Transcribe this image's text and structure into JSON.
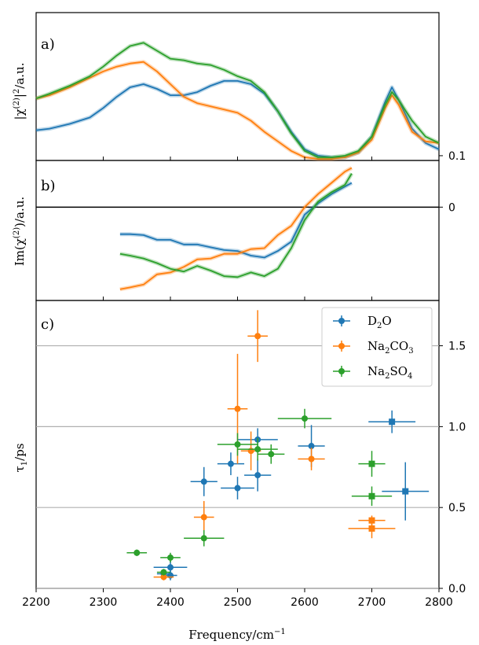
{
  "colors": {
    "D2O": "#1f77b4",
    "Na2CO3": "#ff7f0e",
    "Na2SO4": "#2ca02c",
    "grid": "#b0b0b0"
  },
  "chart_data": [
    {
      "panel": "a)",
      "type": "line",
      "ylabel": "|χ(2)|²/a.u.",
      "xlim": [
        2200,
        2800
      ],
      "ylim": [
        0.07,
        1.0
      ],
      "yticks": [
        "0.1"
      ],
      "series": [
        {
          "name": "D2O",
          "x": [
            2200,
            2220,
            2250,
            2280,
            2300,
            2320,
            2340,
            2360,
            2380,
            2400,
            2420,
            2440,
            2460,
            2480,
            2500,
            2520,
            2540,
            2560,
            2580,
            2600,
            2620,
            2640,
            2660,
            2680,
            2700,
            2720,
            2730,
            2740,
            2760,
            2780,
            2800
          ],
          "y": [
            0.26,
            0.27,
            0.3,
            0.34,
            0.4,
            0.47,
            0.53,
            0.55,
            0.52,
            0.48,
            0.48,
            0.5,
            0.54,
            0.57,
            0.57,
            0.55,
            0.49,
            0.38,
            0.25,
            0.14,
            0.1,
            0.09,
            0.09,
            0.12,
            0.22,
            0.44,
            0.53,
            0.45,
            0.27,
            0.18,
            0.14
          ]
        },
        {
          "name": "Na2CO3",
          "x": [
            2200,
            2220,
            2250,
            2280,
            2300,
            2320,
            2340,
            2360,
            2380,
            2400,
            2420,
            2440,
            2460,
            2480,
            2500,
            2520,
            2540,
            2560,
            2580,
            2600,
            2620,
            2640,
            2660,
            2680,
            2700,
            2720,
            2730,
            2740,
            2760,
            2780,
            2800
          ],
          "y": [
            0.46,
            0.48,
            0.53,
            0.59,
            0.63,
            0.66,
            0.68,
            0.69,
            0.63,
            0.55,
            0.47,
            0.43,
            0.41,
            0.39,
            0.37,
            0.32,
            0.25,
            0.19,
            0.13,
            0.09,
            0.08,
            0.08,
            0.09,
            0.12,
            0.2,
            0.4,
            0.48,
            0.42,
            0.25,
            0.19,
            0.18
          ]
        },
        {
          "name": "Na2SO4",
          "x": [
            2200,
            2220,
            2250,
            2280,
            2300,
            2320,
            2340,
            2360,
            2380,
            2400,
            2420,
            2440,
            2460,
            2480,
            2500,
            2520,
            2540,
            2560,
            2580,
            2600,
            2620,
            2640,
            2660,
            2680,
            2700,
            2720,
            2730,
            2740,
            2760,
            2780,
            2800
          ],
          "y": [
            0.46,
            0.49,
            0.54,
            0.6,
            0.66,
            0.73,
            0.79,
            0.81,
            0.76,
            0.71,
            0.7,
            0.68,
            0.67,
            0.64,
            0.6,
            0.57,
            0.5,
            0.38,
            0.24,
            0.13,
            0.09,
            0.09,
            0.1,
            0.13,
            0.22,
            0.42,
            0.5,
            0.45,
            0.32,
            0.22,
            0.18
          ]
        }
      ]
    },
    {
      "panel": "b)",
      "type": "line",
      "ylabel": "Im(χ(2))/a.u.",
      "xlim": [
        2200,
        2800
      ],
      "ylim": [
        -1.0,
        0.5
      ],
      "yticks": [
        "0"
      ],
      "series": [
        {
          "name": "D2O",
          "x": [
            2325,
            2340,
            2360,
            2380,
            2400,
            2420,
            2440,
            2460,
            2480,
            2500,
            2520,
            2540,
            2560,
            2580,
            2600,
            2620,
            2640,
            2660,
            2670
          ],
          "y": [
            -0.29,
            -0.29,
            -0.3,
            -0.35,
            -0.35,
            -0.4,
            -0.4,
            -0.43,
            -0.46,
            -0.47,
            -0.52,
            -0.54,
            -0.47,
            -0.37,
            -0.08,
            0.04,
            0.14,
            0.22,
            0.26
          ]
        },
        {
          "name": "Na2CO3",
          "x": [
            2325,
            2340,
            2360,
            2380,
            2400,
            2420,
            2440,
            2460,
            2480,
            2500,
            2520,
            2540,
            2560,
            2580,
            2600,
            2620,
            2640,
            2660,
            2670
          ],
          "y": [
            -0.88,
            -0.86,
            -0.83,
            -0.72,
            -0.7,
            -0.64,
            -0.56,
            -0.55,
            -0.5,
            -0.5,
            -0.45,
            -0.44,
            -0.3,
            -0.2,
            0.0,
            0.14,
            0.26,
            0.38,
            0.42
          ]
        },
        {
          "name": "Na2SO4",
          "x": [
            2325,
            2340,
            2360,
            2380,
            2400,
            2420,
            2440,
            2460,
            2480,
            2500,
            2520,
            2540,
            2560,
            2580,
            2600,
            2620,
            2640,
            2660,
            2670
          ],
          "y": [
            -0.5,
            -0.52,
            -0.55,
            -0.6,
            -0.66,
            -0.69,
            -0.63,
            -0.68,
            -0.74,
            -0.75,
            -0.7,
            -0.74,
            -0.66,
            -0.44,
            -0.14,
            0.06,
            0.16,
            0.24,
            0.36
          ]
        }
      ]
    },
    {
      "panel": "c)",
      "type": "scatter",
      "ylabel": "τ1/ps",
      "xlabel": "Frequency/cm−1",
      "xlim": [
        2200,
        2800
      ],
      "ylim": [
        0.0,
        1.78
      ],
      "xticks": [
        2200,
        2300,
        2400,
        2500,
        2600,
        2700,
        2800
      ],
      "yticks": [
        0.0,
        0.5,
        1.0,
        1.5
      ],
      "ytick_labels": [
        "0.0",
        "0.5",
        "1.0",
        "1.5"
      ],
      "grid_y": [
        0.0,
        0.5,
        1.0,
        1.5
      ],
      "legend": {
        "position": "top-right",
        "entries": [
          "D2O",
          "Na2CO3",
          "Na2SO4"
        ]
      },
      "series": [
        {
          "name": "D2O",
          "points": [
            {
              "x": 2390,
              "y": 0.09,
              "xerr": 10,
              "yerr": 0.03,
              "marker": "circle"
            },
            {
              "x": 2400,
              "y": 0.13,
              "xerr": 25,
              "yerr": 0.04,
              "marker": "circle"
            },
            {
              "x": 2400,
              "y": 0.08,
              "xerr": 10,
              "yerr": 0.03,
              "marker": "circle"
            },
            {
              "x": 2450,
              "y": 0.66,
              "xerr": 20,
              "yerr": 0.09,
              "marker": "circle"
            },
            {
              "x": 2490,
              "y": 0.77,
              "xerr": 20,
              "yerr": 0.07,
              "marker": "circle"
            },
            {
              "x": 2500,
              "y": 0.62,
              "xerr": 25,
              "yerr": 0.07,
              "marker": "circle"
            },
            {
              "x": 2530,
              "y": 0.92,
              "xerr": 30,
              "yerr": 0.07,
              "marker": "circle"
            },
            {
              "x": 2530,
              "y": 0.7,
              "xerr": 20,
              "yerr": 0.1,
              "marker": "circle"
            },
            {
              "x": 2610,
              "y": 0.88,
              "xerr": 20,
              "yerr": 0.13,
              "marker": "circle"
            },
            {
              "x": 2730,
              "y": 1.03,
              "xerr": 35,
              "yerr": 0.07,
              "marker": "square"
            },
            {
              "x": 2750,
              "y": 0.6,
              "xerr": 35,
              "yerr": 0.18,
              "marker": "square"
            }
          ]
        },
        {
          "name": "Na2CO3",
          "points": [
            {
              "x": 2390,
              "y": 0.07,
              "xerr": 15,
              "yerr": 0.02,
              "marker": "circle"
            },
            {
              "x": 2450,
              "y": 0.44,
              "xerr": 15,
              "yerr": 0.1,
              "marker": "circle"
            },
            {
              "x": 2500,
              "y": 1.11,
              "xerr": 15,
              "yerr": 0.34,
              "marker": "circle"
            },
            {
              "x": 2520,
              "y": 0.85,
              "xerr": 15,
              "yerr": 0.12,
              "marker": "circle"
            },
            {
              "x": 2530,
              "y": 1.56,
              "xerr": 15,
              "yerr": 0.16,
              "marker": "circle"
            },
            {
              "x": 2610,
              "y": 0.8,
              "xerr": 20,
              "yerr": 0.07,
              "marker": "circle"
            },
            {
              "x": 2700,
              "y": 0.42,
              "xerr": 20,
              "yerr": 0.03,
              "marker": "square"
            },
            {
              "x": 2700,
              "y": 0.37,
              "xerr": 35,
              "yerr": 0.06,
              "marker": "square"
            }
          ]
        },
        {
          "name": "Na2SO4",
          "points": [
            {
              "x": 2350,
              "y": 0.22,
              "xerr": 15,
              "yerr": 0.02,
              "marker": "circle"
            },
            {
              "x": 2390,
              "y": 0.1,
              "xerr": 10,
              "yerr": 0.02,
              "marker": "circle"
            },
            {
              "x": 2400,
              "y": 0.19,
              "xerr": 15,
              "yerr": 0.03,
              "marker": "circle"
            },
            {
              "x": 2450,
              "y": 0.31,
              "xerr": 30,
              "yerr": 0.05,
              "marker": "circle"
            },
            {
              "x": 2500,
              "y": 0.89,
              "xerr": 30,
              "yerr": 0.07,
              "marker": "circle"
            },
            {
              "x": 2530,
              "y": 0.86,
              "xerr": 30,
              "yerr": 0.07,
              "marker": "circle"
            },
            {
              "x": 2550,
              "y": 0.83,
              "xerr": 20,
              "yerr": 0.06,
              "marker": "circle"
            },
            {
              "x": 2600,
              "y": 1.05,
              "xerr": 40,
              "yerr": 0.06,
              "marker": "circle"
            },
            {
              "x": 2700,
              "y": 0.77,
              "xerr": 20,
              "yerr": 0.08,
              "marker": "square"
            },
            {
              "x": 2700,
              "y": 0.57,
              "xerr": 30,
              "yerr": 0.06,
              "marker": "square"
            }
          ]
        }
      ]
    }
  ]
}
